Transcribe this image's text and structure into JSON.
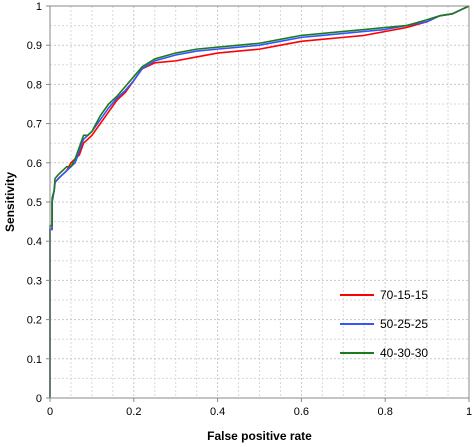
{
  "chart_data": {
    "type": "line",
    "title": "",
    "xlabel": "False positive rate",
    "ylabel": "Sensitivity",
    "xlim": [
      0,
      1
    ],
    "ylim": [
      0,
      1
    ],
    "x_ticks": [
      "0",
      "0.2",
      "0.4",
      "0.6",
      "0.8",
      "1"
    ],
    "y_ticks": [
      "0",
      "0.1",
      "0.2",
      "0.3",
      "0.4",
      "0.5",
      "0.6",
      "0.7",
      "0.8",
      "0.9",
      "1"
    ],
    "grid": "on",
    "legend_position": "bottom-right",
    "series": [
      {
        "name": "70-15-15",
        "color": "#ff0000",
        "points": [
          [
            0,
            0
          ],
          [
            0,
            0.43
          ],
          [
            0.005,
            0.43
          ],
          [
            0.005,
            0.5
          ],
          [
            0.01,
            0.53
          ],
          [
            0.012,
            0.55
          ],
          [
            0.02,
            0.56
          ],
          [
            0.03,
            0.57
          ],
          [
            0.04,
            0.58
          ],
          [
            0.05,
            0.6
          ],
          [
            0.06,
            0.61
          ],
          [
            0.07,
            0.62
          ],
          [
            0.08,
            0.65
          ],
          [
            0.09,
            0.66
          ],
          [
            0.1,
            0.67
          ],
          [
            0.12,
            0.7
          ],
          [
            0.14,
            0.73
          ],
          [
            0.16,
            0.76
          ],
          [
            0.18,
            0.78
          ],
          [
            0.2,
            0.81
          ],
          [
            0.22,
            0.84
          ],
          [
            0.25,
            0.855
          ],
          [
            0.3,
            0.86
          ],
          [
            0.35,
            0.87
          ],
          [
            0.4,
            0.88
          ],
          [
            0.45,
            0.885
          ],
          [
            0.5,
            0.89
          ],
          [
            0.55,
            0.9
          ],
          [
            0.6,
            0.91
          ],
          [
            0.65,
            0.915
          ],
          [
            0.7,
            0.92
          ],
          [
            0.75,
            0.925
          ],
          [
            0.8,
            0.935
          ],
          [
            0.85,
            0.945
          ],
          [
            0.9,
            0.96
          ],
          [
            0.93,
            0.975
          ],
          [
            0.96,
            0.98
          ],
          [
            0.98,
            0.99
          ],
          [
            1,
            1
          ]
        ]
      },
      {
        "name": "50-25-25",
        "color": "#3355ff",
        "points": [
          [
            0,
            0
          ],
          [
            0,
            0.43
          ],
          [
            0.005,
            0.43
          ],
          [
            0.005,
            0.5
          ],
          [
            0.01,
            0.53
          ],
          [
            0.012,
            0.55
          ],
          [
            0.02,
            0.56
          ],
          [
            0.03,
            0.57
          ],
          [
            0.04,
            0.58
          ],
          [
            0.05,
            0.59
          ],
          [
            0.06,
            0.6
          ],
          [
            0.07,
            0.63
          ],
          [
            0.08,
            0.66
          ],
          [
            0.09,
            0.67
          ],
          [
            0.1,
            0.68
          ],
          [
            0.12,
            0.71
          ],
          [
            0.14,
            0.74
          ],
          [
            0.16,
            0.765
          ],
          [
            0.18,
            0.785
          ],
          [
            0.2,
            0.81
          ],
          [
            0.22,
            0.84
          ],
          [
            0.25,
            0.86
          ],
          [
            0.3,
            0.875
          ],
          [
            0.35,
            0.885
          ],
          [
            0.4,
            0.89
          ],
          [
            0.45,
            0.895
          ],
          [
            0.5,
            0.9
          ],
          [
            0.55,
            0.91
          ],
          [
            0.6,
            0.92
          ],
          [
            0.65,
            0.925
          ],
          [
            0.7,
            0.93
          ],
          [
            0.75,
            0.935
          ],
          [
            0.8,
            0.94
          ],
          [
            0.85,
            0.95
          ],
          [
            0.9,
            0.96
          ],
          [
            0.93,
            0.975
          ],
          [
            0.96,
            0.98
          ],
          [
            0.98,
            0.99
          ],
          [
            1,
            1
          ]
        ]
      },
      {
        "name": "40-30-30",
        "color": "#1e7a1e",
        "points": [
          [
            0,
            0
          ],
          [
            0,
            0.44
          ],
          [
            0.005,
            0.44
          ],
          [
            0.005,
            0.51
          ],
          [
            0.01,
            0.53
          ],
          [
            0.012,
            0.56
          ],
          [
            0.02,
            0.57
          ],
          [
            0.03,
            0.58
          ],
          [
            0.04,
            0.59
          ],
          [
            0.05,
            0.59
          ],
          [
            0.06,
            0.61
          ],
          [
            0.07,
            0.64
          ],
          [
            0.08,
            0.67
          ],
          [
            0.09,
            0.67
          ],
          [
            0.1,
            0.68
          ],
          [
            0.12,
            0.72
          ],
          [
            0.14,
            0.75
          ],
          [
            0.16,
            0.77
          ],
          [
            0.18,
            0.795
          ],
          [
            0.2,
            0.82
          ],
          [
            0.22,
            0.845
          ],
          [
            0.25,
            0.865
          ],
          [
            0.3,
            0.88
          ],
          [
            0.35,
            0.89
          ],
          [
            0.4,
            0.895
          ],
          [
            0.45,
            0.9
          ],
          [
            0.5,
            0.905
          ],
          [
            0.55,
            0.915
          ],
          [
            0.6,
            0.925
          ],
          [
            0.65,
            0.93
          ],
          [
            0.7,
            0.935
          ],
          [
            0.75,
            0.94
          ],
          [
            0.8,
            0.945
          ],
          [
            0.85,
            0.95
          ],
          [
            0.9,
            0.965
          ],
          [
            0.93,
            0.975
          ],
          [
            0.96,
            0.98
          ],
          [
            0.98,
            0.99
          ],
          [
            1,
            1
          ]
        ]
      }
    ]
  }
}
